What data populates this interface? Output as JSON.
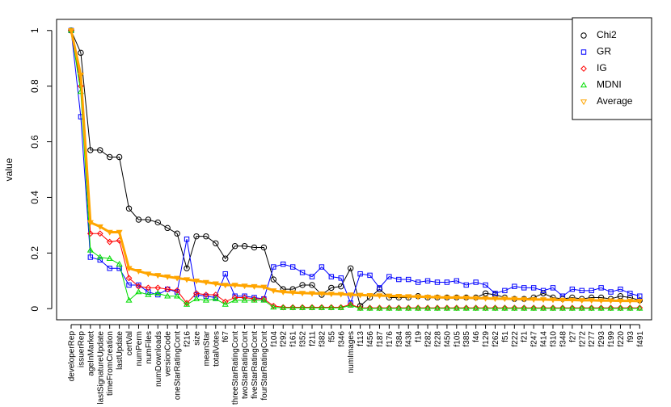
{
  "chart_data": {
    "type": "line",
    "ylabel": "value",
    "categories": [
      "developerRep",
      "issuerRep",
      "ageInMarket",
      "lastSignatureUpdate",
      "timeFromCreation",
      "lastUpdate",
      "certVal",
      "numPerm",
      "numFiles",
      "numDownloads",
      "versionCode",
      "oneStarRatingCont",
      "f216",
      "size",
      "meanStar",
      "totalVotes",
      "f67",
      "threeStarRatingCont",
      "twoStarRatingCont",
      "fiveStarRatingCont",
      "fourStarRatingCont",
      "f104",
      "f292",
      "f161",
      "f352",
      "f211",
      "f382",
      "f55",
      "f346",
      "numImages",
      "f113",
      "f456",
      "f187",
      "f176",
      "f384",
      "f438",
      "f19",
      "f282",
      "f228",
      "f450",
      "f105",
      "f385",
      "f46",
      "f129",
      "f262",
      "f51",
      "f222",
      "f21",
      "f247",
      "f414",
      "f310",
      "f348",
      "f27",
      "f272",
      "f277",
      "f293",
      "f199",
      "f220",
      "f93",
      "f491"
    ],
    "series": [
      {
        "name": "Chi2",
        "color": "#000000",
        "marker": "circle",
        "values": [
          1.0,
          0.92,
          0.57,
          0.57,
          0.545,
          0.545,
          0.36,
          0.32,
          0.32,
          0.31,
          0.29,
          0.27,
          0.145,
          0.26,
          0.26,
          0.235,
          0.18,
          0.225,
          0.225,
          0.22,
          0.22,
          0.105,
          0.07,
          0.07,
          0.085,
          0.085,
          0.05,
          0.075,
          0.08,
          0.145,
          0.01,
          0.04,
          0.07,
          0.04,
          0.04,
          0.04,
          0.045,
          0.04,
          0.04,
          0.04,
          0.04,
          0.04,
          0.04,
          0.055,
          0.05,
          0.04,
          0.035,
          0.035,
          0.04,
          0.055,
          0.04,
          0.035,
          0.04,
          0.035,
          0.04,
          0.04,
          0.035,
          0.045,
          0.04,
          0.03
        ]
      },
      {
        "name": "GR",
        "color": "#0000ff",
        "marker": "square",
        "values": [
          1.0,
          0.69,
          0.185,
          0.175,
          0.145,
          0.145,
          0.085,
          0.085,
          0.06,
          0.05,
          0.07,
          0.06,
          0.25,
          0.05,
          0.045,
          0.04,
          0.125,
          0.045,
          0.045,
          0.04,
          0.035,
          0.15,
          0.16,
          0.15,
          0.13,
          0.115,
          0.15,
          0.115,
          0.11,
          0.02,
          0.125,
          0.12,
          0.075,
          0.115,
          0.105,
          0.105,
          0.095,
          0.1,
          0.095,
          0.095,
          0.1,
          0.085,
          0.095,
          0.085,
          0.055,
          0.065,
          0.08,
          0.075,
          0.075,
          0.065,
          0.075,
          0.045,
          0.07,
          0.065,
          0.065,
          0.075,
          0.06,
          0.07,
          0.055,
          0.045
        ]
      },
      {
        "name": "IG",
        "color": "#ff0000",
        "marker": "diamond",
        "values": [
          1.0,
          0.8,
          0.27,
          0.27,
          0.24,
          0.245,
          0.11,
          0.08,
          0.075,
          0.075,
          0.07,
          0.065,
          0.02,
          0.055,
          0.05,
          0.05,
          0.025,
          0.04,
          0.04,
          0.035,
          0.035,
          0.01,
          0.005,
          0.005,
          0.005,
          0.005,
          0.005,
          0.005,
          0.005,
          0.015,
          0.003,
          0.003,
          0.003,
          0.003,
          0.003,
          0.003,
          0.003,
          0.003,
          0.003,
          0.003,
          0.003,
          0.003,
          0.003,
          0.003,
          0.003,
          0.003,
          0.003,
          0.003,
          0.003,
          0.003,
          0.003,
          0.003,
          0.003,
          0.003,
          0.003,
          0.003,
          0.003,
          0.003,
          0.003,
          0.003
        ]
      },
      {
        "name": "MDNI",
        "color": "#00dd00",
        "marker": "triangle-up",
        "values": [
          1.0,
          0.78,
          0.21,
          0.185,
          0.18,
          0.16,
          0.03,
          0.06,
          0.05,
          0.055,
          0.045,
          0.045,
          0.015,
          0.035,
          0.03,
          0.035,
          0.015,
          0.03,
          0.03,
          0.03,
          0.03,
          0.005,
          0.003,
          0.003,
          0.003,
          0.003,
          0.003,
          0.003,
          0.003,
          0.012,
          0.001,
          0.001,
          0.001,
          0.001,
          0.001,
          0.001,
          0.001,
          0.001,
          0.001,
          0.001,
          0.001,
          0.001,
          0.001,
          0.001,
          0.001,
          0.001,
          0.001,
          0.001,
          0.001,
          0.001,
          0.001,
          0.001,
          0.001,
          0.001,
          0.001,
          0.001,
          0.001,
          0.001,
          0.001,
          0.001
        ]
      },
      {
        "name": "Average",
        "color": "#ffa500",
        "marker": "triangle-down",
        "values": [
          1.0,
          0.84,
          0.31,
          0.295,
          0.275,
          0.275,
          0.145,
          0.135,
          0.125,
          0.12,
          0.115,
          0.11,
          0.105,
          0.1,
          0.095,
          0.09,
          0.085,
          0.085,
          0.082,
          0.08,
          0.078,
          0.065,
          0.06,
          0.058,
          0.056,
          0.055,
          0.054,
          0.053,
          0.052,
          0.05,
          0.049,
          0.048,
          0.047,
          0.046,
          0.045,
          0.044,
          0.043,
          0.042,
          0.041,
          0.04,
          0.04,
          0.039,
          0.038,
          0.037,
          0.036,
          0.036,
          0.035,
          0.034,
          0.033,
          0.033,
          0.032,
          0.031,
          0.031,
          0.03,
          0.03,
          0.029,
          0.029,
          0.028,
          0.028,
          0.027
        ]
      }
    ],
    "ylim": [
      -0.04,
      1.04
    ],
    "yticks": [
      0,
      0.2,
      0.4,
      0.6,
      0.8,
      1
    ],
    "legend": "topright"
  }
}
